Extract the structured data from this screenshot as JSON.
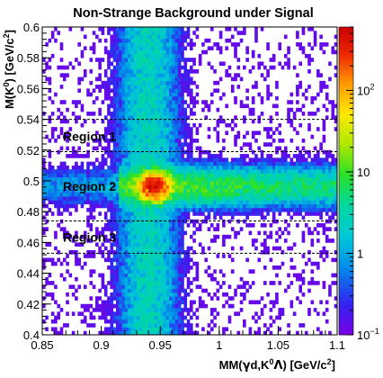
{
  "chart_data": {
    "type": "heatmap",
    "title": "Non-Strange Background under Signal",
    "xlabel": {
      "pre": "MM(",
      "gamma": "γ",
      "d": "d,K",
      "sup0": "0",
      "lambda": "Λ",
      "post": ") [GeV/c",
      "sup2": "2",
      "close": "]"
    },
    "ylabel": {
      "pre": "M(K",
      "sup0": "0",
      "mid": ") [GeV/c",
      "sup2": "2",
      "close": "]"
    },
    "xlim": [
      0.85,
      1.1
    ],
    "ylim": [
      0.4,
      0.6
    ],
    "xticks": [
      0.85,
      0.9,
      0.95,
      1.0,
      1.05,
      1.1
    ],
    "xtick_labels": [
      "0.85",
      "0.9",
      "0.95",
      "1",
      "1.05",
      "1.1"
    ],
    "yticks": [
      0.4,
      0.42,
      0.44,
      0.46,
      0.48,
      0.5,
      0.52,
      0.54,
      0.56,
      0.58,
      0.6
    ],
    "ytick_labels": [
      "0.4",
      "0.42",
      "0.44",
      "0.46",
      "0.48",
      "0.5",
      "0.52",
      "0.54",
      "0.56",
      "0.58",
      "0.6"
    ],
    "colorbar": {
      "scale": "log",
      "range": [
        0.1,
        600
      ],
      "ticks": [
        {
          "value": 0.1,
          "base": "10",
          "exp": "−1"
        },
        {
          "value": 1,
          "base": "1",
          "exp": ""
        },
        {
          "value": 10,
          "base": "10",
          "exp": ""
        },
        {
          "value": 100,
          "base": "10",
          "exp": "2"
        }
      ]
    },
    "dashed_lines_y": [
      0.453,
      0.474,
      0.519,
      0.54
    ],
    "regions": [
      {
        "label": "Region 1",
        "y_center": 0.529
      },
      {
        "label": "Region 2",
        "y_center": 0.4965
      },
      {
        "label": "Region 3",
        "y_center": 0.4635
      }
    ],
    "features": {
      "vertical_band_center_x": 0.94,
      "horizontal_band_center_y": 0.4965,
      "peak": {
        "x": 0.945,
        "y": 0.4965,
        "value": 550
      }
    },
    "bins": {
      "nx": 100,
      "ny": 80
    }
  }
}
